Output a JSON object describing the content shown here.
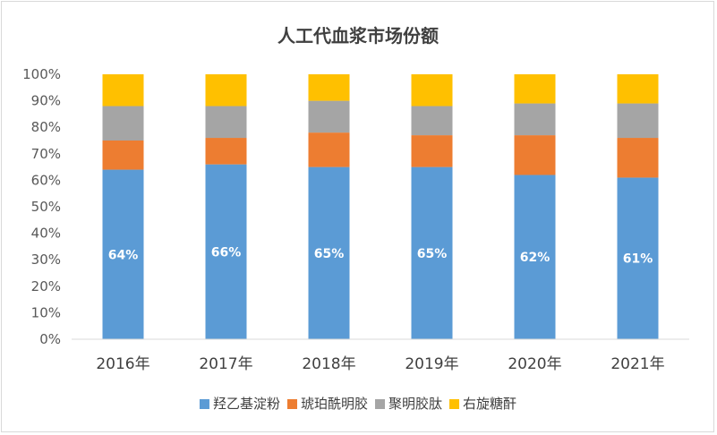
{
  "chart_data": {
    "type": "bar",
    "stacked": true,
    "percent_stacked": true,
    "title": "人工代血浆市场份额",
    "xlabel": "",
    "ylabel": "",
    "ylim": [
      0,
      100
    ],
    "ytick_labels": [
      "0%",
      "10%",
      "20%",
      "30%",
      "40%",
      "50%",
      "60%",
      "70%",
      "80%",
      "90%",
      "100%"
    ],
    "categories": [
      "2016年",
      "2017年",
      "2018年",
      "2019年",
      "2020年",
      "2021年"
    ],
    "series": [
      {
        "name": "羟乙基淀粉",
        "color": "#5B9BD5",
        "values": [
          64,
          66,
          65,
          65,
          62,
          61
        ],
        "labels": [
          "64%",
          "66%",
          "65%",
          "65%",
          "62%",
          "61%"
        ]
      },
      {
        "name": "琥珀酰明胶",
        "color": "#ED7D31",
        "values": [
          11,
          10,
          13,
          12,
          15,
          15
        ]
      },
      {
        "name": "聚明胶肽",
        "color": "#A5A5A5",
        "values": [
          13,
          12,
          12,
          11,
          12,
          13
        ]
      },
      {
        "name": "右旋糖酐",
        "color": "#FFC000",
        "values": [
          12,
          12,
          10,
          12,
          11,
          11
        ]
      }
    ],
    "grid": false,
    "legend_position": "bottom"
  }
}
